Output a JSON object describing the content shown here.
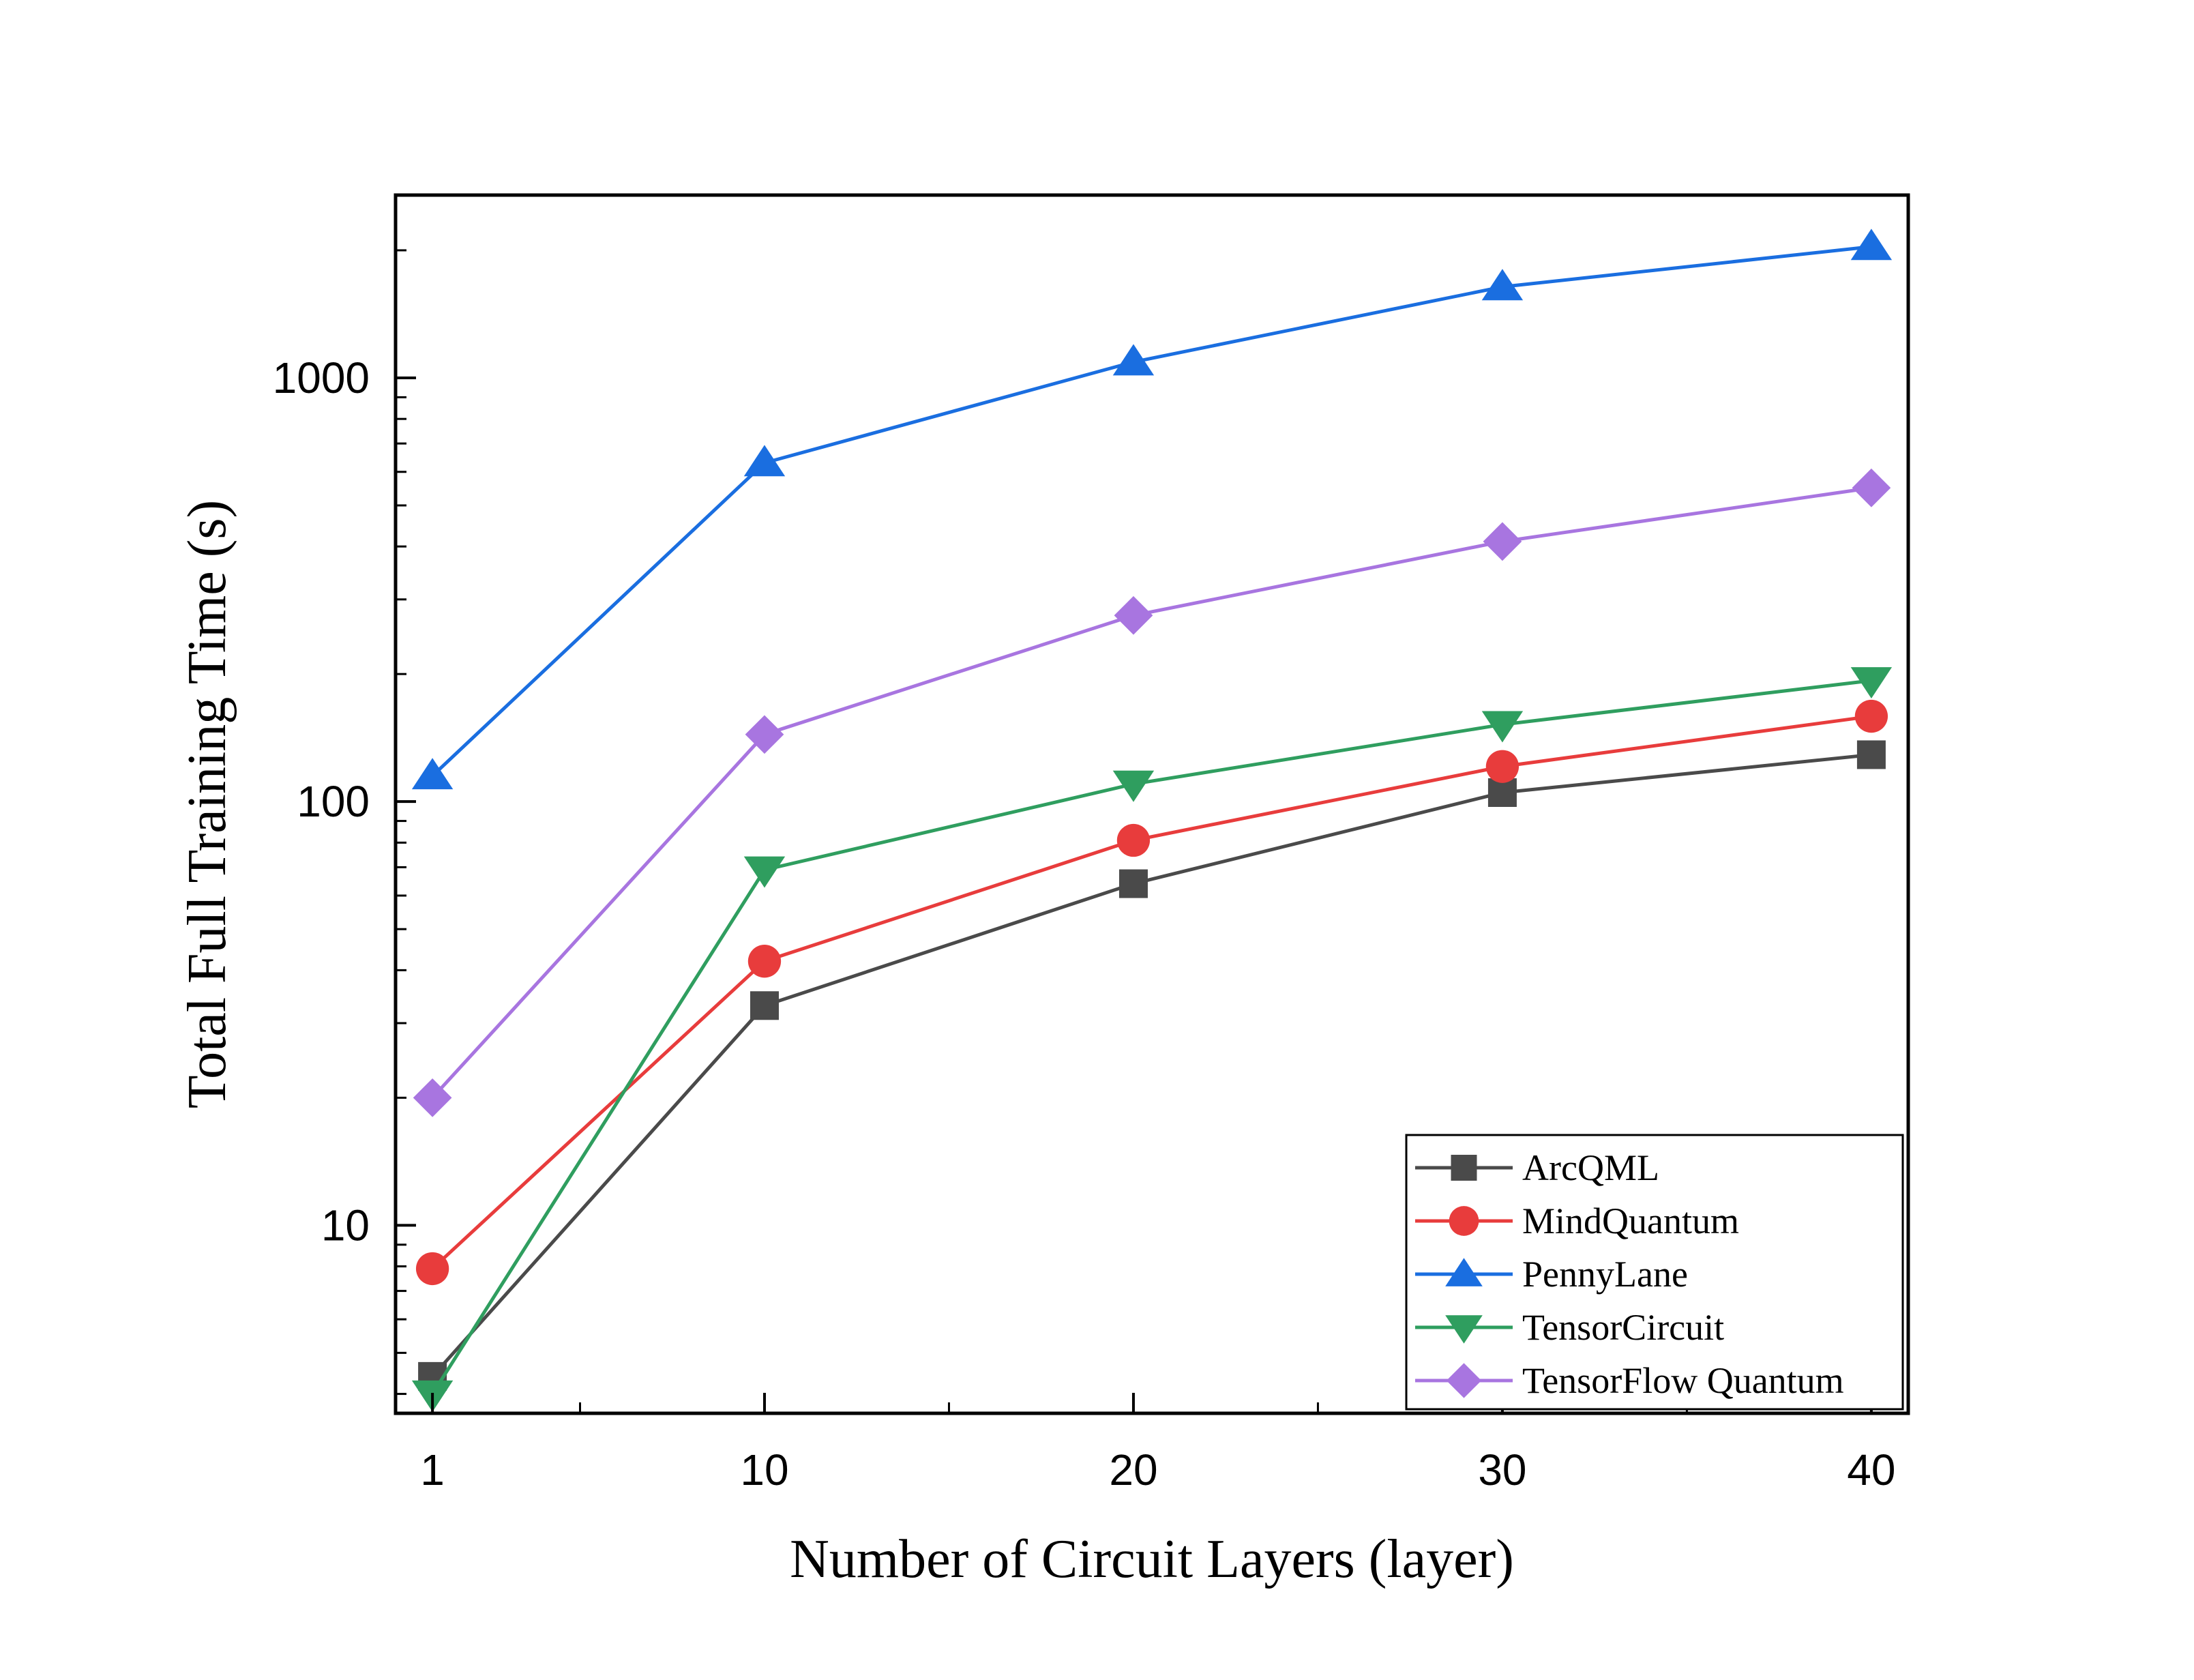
{
  "chart_data": {
    "type": "line",
    "title": "",
    "xlabel": "Number of Circuit Layers (layer)",
    "ylabel": "Total Full Training Time (s)",
    "yscale": "log",
    "xlim": [
      0,
      41
    ],
    "ylim": [
      3.6,
      2700
    ],
    "x_ticks": [
      1,
      10,
      20,
      30,
      40
    ],
    "y_ticks": [
      10,
      100,
      1000
    ],
    "x": [
      1,
      10,
      20,
      30,
      40
    ],
    "grid": false,
    "legend_position": "bottom-right",
    "series": [
      {
        "name": "ArcQML",
        "color": "#4a4a4a",
        "marker": "square",
        "values": [
          4.4,
          33,
          64,
          105,
          129
        ]
      },
      {
        "name": "MindQuantum",
        "color": "#e83c3c",
        "marker": "circle",
        "values": [
          7.9,
          42,
          81,
          121,
          159
        ]
      },
      {
        "name": "PennyLane",
        "color": "#1a6ee0",
        "marker": "triangle-up",
        "values": [
          115,
          630,
          1090,
          1640,
          2040
        ]
      },
      {
        "name": "TensorCircuit",
        "color": "#2f9e5f",
        "marker": "triangle-down",
        "values": [
          4.0,
          69,
          110,
          152,
          193
        ]
      },
      {
        "name": "TensorFlow Quantum",
        "color": "#a875e0",
        "marker": "diamond",
        "values": [
          20,
          144,
          275,
          411,
          550
        ]
      }
    ]
  }
}
